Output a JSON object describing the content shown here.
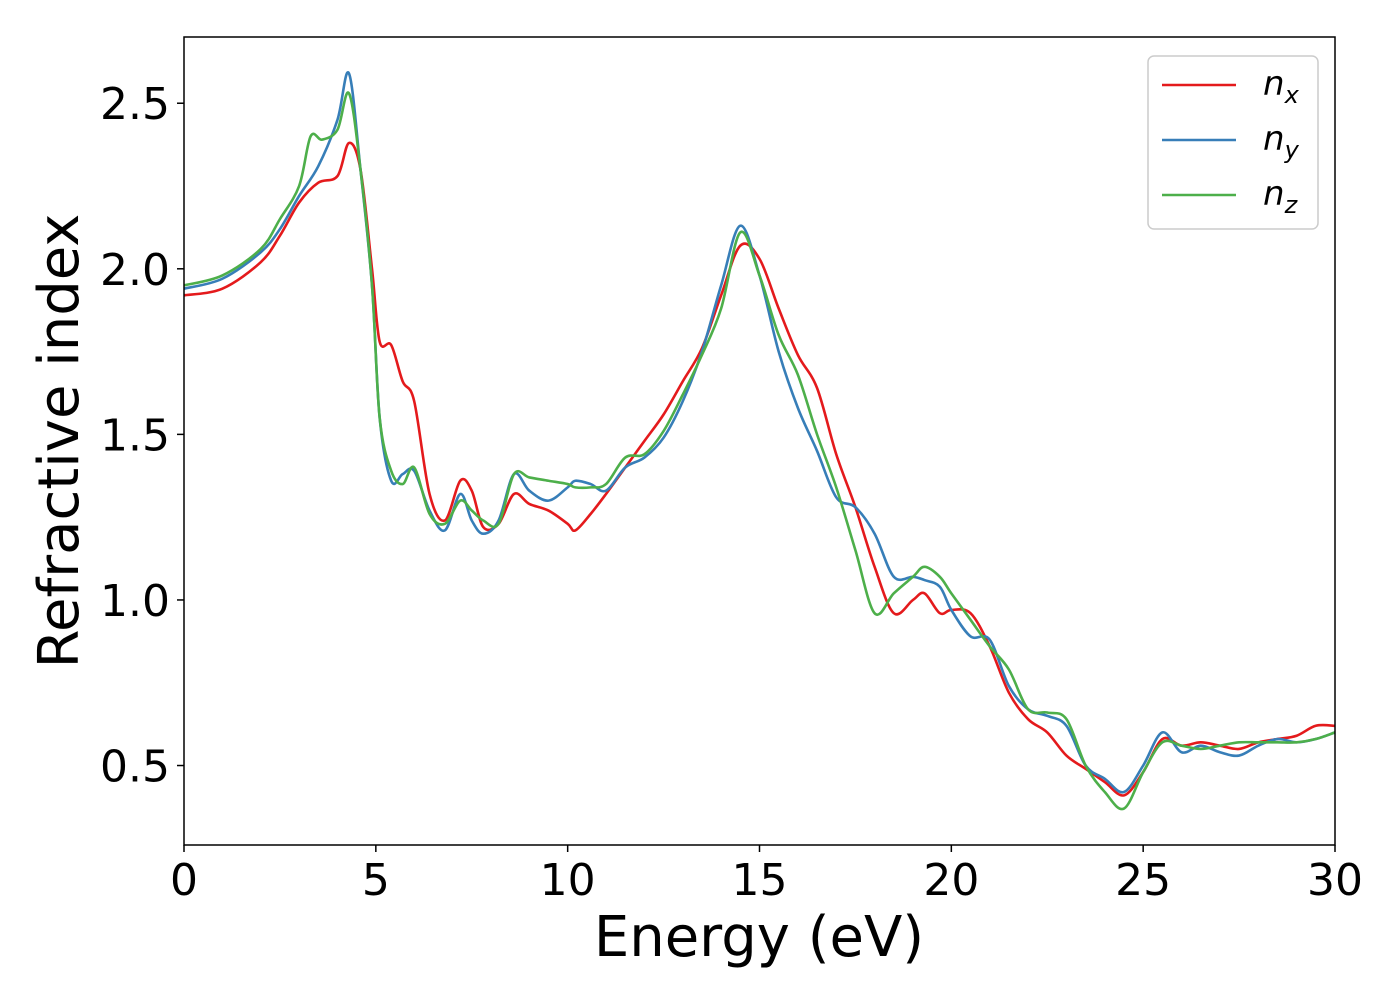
{
  "chart_data": {
    "type": "line",
    "xlabel": "Energy (eV)",
    "ylabel": "Refractive index",
    "xlim": [
      0,
      30
    ],
    "ylim": [
      0.26,
      2.7
    ],
    "xticks": [
      0,
      5,
      10,
      15,
      20,
      25,
      30
    ],
    "yticks": [
      0.5,
      1.0,
      1.5,
      2.0,
      2.5
    ],
    "xtick_labels": [
      "0",
      "5",
      "10",
      "15",
      "20",
      "25",
      "30"
    ],
    "ytick_labels": [
      "0.5",
      "1.0",
      "1.5",
      "2.0",
      "2.5"
    ],
    "grid": false,
    "legend_position": "top-right",
    "series": [
      {
        "name": "n_x",
        "label_main": "n",
        "label_sub": "x",
        "color": "#e41a1c",
        "x": [
          0,
          1,
          2,
          2.5,
          3,
          3.5,
          4,
          4.3,
          4.6,
          4.9,
          5.1,
          5.4,
          5.7,
          6,
          6.4,
          6.8,
          7.2,
          7.5,
          7.8,
          8.2,
          8.6,
          9,
          9.5,
          10,
          10.2,
          10.6,
          11,
          11.5,
          12,
          12.5,
          13,
          13.5,
          14,
          14.5,
          15,
          15.5,
          16,
          16.5,
          17,
          17.5,
          18,
          18.5,
          19,
          19.3,
          19.7,
          20,
          20.5,
          21,
          21.5,
          22,
          22.5,
          23,
          23.5,
          24,
          24.5,
          25,
          25.5,
          26,
          26.5,
          27,
          27.5,
          28,
          28.5,
          29,
          29.5,
          30
        ],
        "y": [
          1.92,
          1.94,
          2.02,
          2.1,
          2.2,
          2.26,
          2.28,
          2.38,
          2.3,
          2.0,
          1.78,
          1.77,
          1.66,
          1.6,
          1.32,
          1.24,
          1.36,
          1.33,
          1.22,
          1.23,
          1.32,
          1.29,
          1.27,
          1.23,
          1.21,
          1.26,
          1.32,
          1.4,
          1.48,
          1.56,
          1.66,
          1.76,
          1.92,
          2.07,
          2.03,
          1.88,
          1.74,
          1.64,
          1.44,
          1.28,
          1.1,
          0.96,
          1.0,
          1.02,
          0.96,
          0.97,
          0.96,
          0.86,
          0.72,
          0.64,
          0.6,
          0.53,
          0.49,
          0.45,
          0.41,
          0.48,
          0.58,
          0.56,
          0.57,
          0.56,
          0.55,
          0.57,
          0.58,
          0.59,
          0.62,
          0.62
        ]
      },
      {
        "name": "n_y",
        "label_main": "n",
        "label_sub": "y",
        "color": "#377eb8",
        "x": [
          0,
          1,
          2,
          2.5,
          3,
          3.5,
          4,
          4.3,
          4.6,
          4.9,
          5.1,
          5.4,
          5.7,
          6,
          6.4,
          6.8,
          7.2,
          7.5,
          7.8,
          8.2,
          8.6,
          9,
          9.5,
          10,
          10.2,
          10.6,
          11,
          11.5,
          12,
          12.5,
          13,
          13.5,
          14,
          14.5,
          15,
          15.5,
          16,
          16.5,
          17,
          17.5,
          18,
          18.5,
          19,
          19.3,
          19.7,
          20,
          20.5,
          21,
          21.5,
          22,
          22.5,
          23,
          23.5,
          24,
          24.5,
          25,
          25.5,
          26,
          26.5,
          27,
          27.5,
          28,
          28.5,
          29,
          29.5,
          30
        ],
        "y": [
          1.94,
          1.97,
          2.05,
          2.12,
          2.22,
          2.31,
          2.45,
          2.59,
          2.3,
          1.95,
          1.55,
          1.36,
          1.38,
          1.39,
          1.27,
          1.21,
          1.32,
          1.24,
          1.2,
          1.24,
          1.38,
          1.33,
          1.3,
          1.34,
          1.36,
          1.35,
          1.33,
          1.4,
          1.43,
          1.49,
          1.6,
          1.75,
          1.95,
          2.13,
          1.98,
          1.75,
          1.58,
          1.45,
          1.31,
          1.28,
          1.2,
          1.07,
          1.07,
          1.06,
          1.04,
          0.97,
          0.89,
          0.88,
          0.74,
          0.67,
          0.65,
          0.62,
          0.5,
          0.46,
          0.42,
          0.5,
          0.6,
          0.54,
          0.56,
          0.54,
          0.53,
          0.56,
          0.58,
          0.57,
          0.58,
          0.6
        ]
      },
      {
        "name": "n_z",
        "label_main": "n",
        "label_sub": "z",
        "color": "#4daf4a",
        "x": [
          0,
          1,
          2,
          2.5,
          3,
          3.3,
          3.6,
          4,
          4.3,
          4.6,
          4.9,
          5.1,
          5.4,
          5.7,
          6,
          6.4,
          6.8,
          7.2,
          7.5,
          7.8,
          8.2,
          8.6,
          9,
          9.5,
          10,
          10.2,
          10.6,
          11,
          11.5,
          12,
          12.5,
          13,
          13.5,
          14,
          14.5,
          15,
          15.5,
          16,
          16.5,
          17,
          17.5,
          18,
          18.5,
          19,
          19.3,
          19.7,
          20,
          20.5,
          21,
          21.5,
          22,
          22.5,
          23,
          23.5,
          24,
          24.5,
          25,
          25.5,
          26,
          26.5,
          27,
          27.5,
          28,
          28.5,
          29,
          29.5,
          30
        ],
        "y": [
          1.95,
          1.98,
          2.06,
          2.15,
          2.25,
          2.4,
          2.39,
          2.42,
          2.53,
          2.3,
          1.95,
          1.55,
          1.39,
          1.35,
          1.4,
          1.26,
          1.23,
          1.3,
          1.27,
          1.24,
          1.23,
          1.38,
          1.37,
          1.36,
          1.35,
          1.34,
          1.34,
          1.35,
          1.43,
          1.44,
          1.51,
          1.62,
          1.74,
          1.88,
          2.11,
          1.98,
          1.8,
          1.68,
          1.5,
          1.34,
          1.15,
          0.96,
          1.02,
          1.07,
          1.1,
          1.07,
          1.02,
          0.94,
          0.86,
          0.79,
          0.67,
          0.66,
          0.64,
          0.5,
          0.42,
          0.37,
          0.48,
          0.57,
          0.56,
          0.55,
          0.56,
          0.57,
          0.57,
          0.57,
          0.57,
          0.58,
          0.6
        ]
      }
    ]
  }
}
